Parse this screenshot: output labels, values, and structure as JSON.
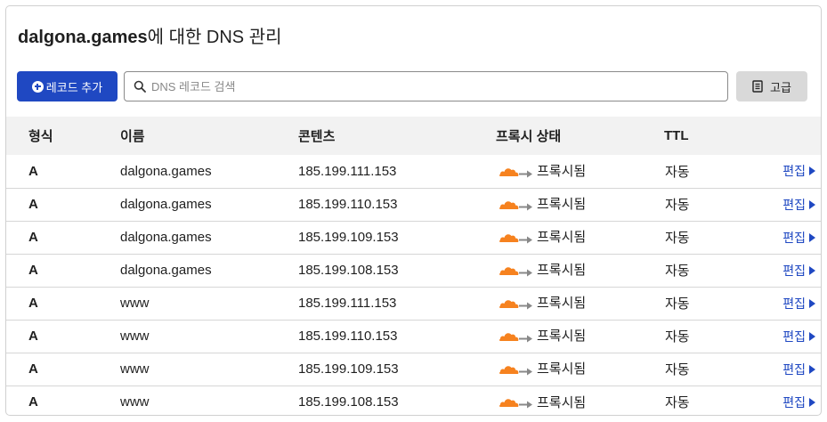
{
  "header": {
    "domain": "dalgona.games",
    "title_suffix": "에 대한 DNS 관리"
  },
  "toolbar": {
    "add_label": "레코드 추가",
    "search_placeholder": "DNS 레코드 검색",
    "advanced_label": "고급"
  },
  "table": {
    "columns": [
      "형식",
      "이름",
      "콘텐츠",
      "프록시 상태",
      "TTL"
    ],
    "rows": [
      {
        "type": "A",
        "name": "dalgona.games",
        "content": "185.199.111.153",
        "proxy": "프록시됨",
        "ttl": "자동",
        "edit": "편집"
      },
      {
        "type": "A",
        "name": "dalgona.games",
        "content": "185.199.110.153",
        "proxy": "프록시됨",
        "ttl": "자동",
        "edit": "편집"
      },
      {
        "type": "A",
        "name": "dalgona.games",
        "content": "185.199.109.153",
        "proxy": "프록시됨",
        "ttl": "자동",
        "edit": "편집"
      },
      {
        "type": "A",
        "name": "dalgona.games",
        "content": "185.199.108.153",
        "proxy": "프록시됨",
        "ttl": "자동",
        "edit": "편집"
      },
      {
        "type": "A",
        "name": "www",
        "content": "185.199.111.153",
        "proxy": "프록시됨",
        "ttl": "자동",
        "edit": "편집"
      },
      {
        "type": "A",
        "name": "www",
        "content": "185.199.110.153",
        "proxy": "프록시됨",
        "ttl": "자동",
        "edit": "편집"
      },
      {
        "type": "A",
        "name": "www",
        "content": "185.199.109.153",
        "proxy": "프록시됨",
        "ttl": "자동",
        "edit": "편집"
      },
      {
        "type": "A",
        "name": "www",
        "content": "185.199.108.153",
        "proxy": "프록시됨",
        "ttl": "자동",
        "edit": "편집"
      }
    ]
  },
  "colors": {
    "primary": "#1f48c2",
    "cloud_orange": "#f6821f",
    "header_bg": "#f2f2f2"
  },
  "icons": {
    "add": "plus-circle-icon",
    "search": "search-icon",
    "advanced": "document-icon",
    "proxy": "cloud-proxied-icon",
    "edit": "caret-right-icon"
  }
}
